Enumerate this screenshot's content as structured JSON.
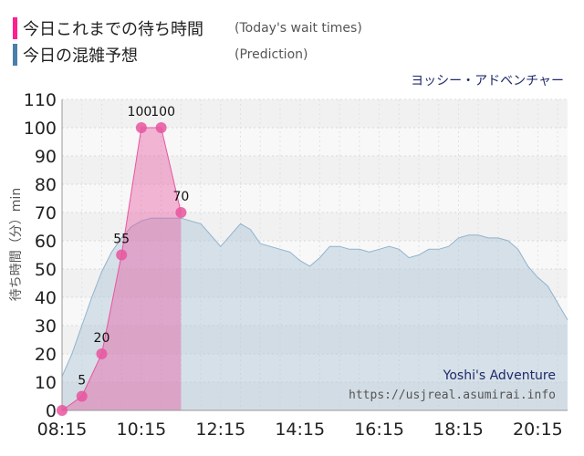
{
  "legend": {
    "today_label": "今日これまでの待ち時間",
    "today_sub": "(Today's wait times)",
    "prediction_label": "今日の混雑予想",
    "prediction_sub": "(Prediction)"
  },
  "attraction_title": "ヨッシー・アドベンチャー",
  "watermark": {
    "name": "Yoshi's Adventure",
    "url": "https://usjreal.asumirai.info"
  },
  "colors": {
    "today": "#e8559f",
    "today_swatch": "#ff1f8f",
    "prediction_fill": "#b3c8d8",
    "prediction_line": "#8fb3cd",
    "prediction_swatch": "#4a7fab"
  },
  "chart_data": {
    "type": "area",
    "ylabel": "待ち時間（分）min",
    "ylim": [
      0,
      110
    ],
    "yticks": [
      0,
      10,
      20,
      30,
      40,
      50,
      60,
      70,
      80,
      90,
      100,
      110
    ],
    "xticks": [
      "08:15",
      "10:15",
      "12:15",
      "14:15",
      "16:15",
      "18:15",
      "20:15"
    ],
    "xlim": [
      "08:15",
      "21:00"
    ],
    "grid": true,
    "series": [
      {
        "name": "今日の混雑予想",
        "x": [
          "08:15",
          "08:30",
          "08:45",
          "09:00",
          "09:15",
          "09:30",
          "09:45",
          "10:00",
          "10:15",
          "10:30",
          "10:45",
          "11:00",
          "11:15",
          "11:30",
          "11:45",
          "12:00",
          "12:15",
          "12:30",
          "12:45",
          "13:00",
          "13:15",
          "13:30",
          "13:45",
          "14:00",
          "14:15",
          "14:30",
          "14:45",
          "15:00",
          "15:15",
          "15:30",
          "15:45",
          "16:00",
          "16:15",
          "16:30",
          "16:45",
          "17:00",
          "17:15",
          "17:30",
          "17:45",
          "18:00",
          "18:15",
          "18:30",
          "18:45",
          "19:00",
          "19:15",
          "19:30",
          "19:45",
          "20:00",
          "20:15",
          "20:30",
          "20:45",
          "21:00"
        ],
        "values": [
          12,
          20,
          30,
          40,
          49,
          56,
          61,
          65,
          67,
          68,
          68,
          68,
          68,
          67,
          66,
          62,
          58,
          62,
          66,
          64,
          59,
          58,
          57,
          56,
          53,
          51,
          54,
          58,
          58,
          57,
          57,
          56,
          57,
          58,
          57,
          54,
          55,
          57,
          57,
          58,
          61,
          62,
          62,
          61,
          61,
          60,
          57,
          51,
          47,
          44,
          38,
          32
        ]
      },
      {
        "name": "今日これまでの待ち時間",
        "x": [
          "08:15",
          "08:45",
          "09:15",
          "09:45",
          "10:15",
          "10:45",
          "11:15"
        ],
        "values": [
          0,
          5,
          20,
          55,
          100,
          100,
          70
        ]
      }
    ]
  }
}
